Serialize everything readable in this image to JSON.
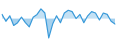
{
  "chart_data": {
    "type": "area",
    "values": [
      3,
      -2,
      2,
      -5,
      -3,
      1,
      -3,
      -6,
      1,
      3,
      7,
      4,
      -14,
      -4,
      2,
      -3,
      4,
      6,
      5,
      0,
      3,
      -3,
      2,
      5,
      4,
      -1,
      4,
      3,
      -2,
      -4
    ],
    "color": "#3a9ad9",
    "ylim": [
      -17,
      12
    ],
    "grid": false,
    "tick_labels": false
  }
}
